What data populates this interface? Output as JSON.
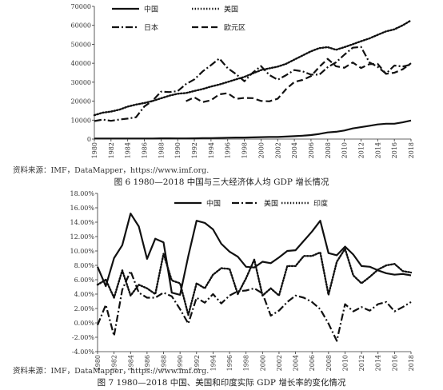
{
  "figure1": {
    "source": "资料来源：IMF，DataMapper，https://www.imf.org.",
    "caption": "图 6   1980—2018 中国与三大经济体人均 GDP 增长情况",
    "chart_data": {
      "type": "line",
      "title": "",
      "xlabel": "",
      "ylabel": "",
      "ylim": [
        0,
        70000
      ],
      "yticks": [
        0,
        10000,
        20000,
        30000,
        40000,
        50000,
        60000,
        70000
      ],
      "ytick_labels": [
        "0",
        "10000",
        "20000",
        "30000",
        "40000",
        "50000",
        "60000",
        "70000"
      ],
      "xticks": [
        "1980",
        "1982",
        "1984",
        "1986",
        "1988",
        "1990",
        "1992",
        "1994",
        "1996",
        "1998",
        "2000",
        "2002",
        "2004",
        "2006",
        "2008",
        "2010",
        "2012",
        "2014",
        "2016",
        "2018"
      ],
      "x": [
        1980,
        1981,
        1982,
        1983,
        1984,
        1985,
        1986,
        1987,
        1988,
        1989,
        1990,
        1991,
        1992,
        1993,
        1994,
        1995,
        1996,
        1997,
        1998,
        1999,
        2000,
        2001,
        2002,
        2003,
        2004,
        2005,
        2006,
        2007,
        2008,
        2009,
        2010,
        2011,
        2012,
        2013,
        2014,
        2015,
        2016,
        2017,
        2018
      ],
      "legend_position": "top",
      "grid": false,
      "series": [
        {
          "name": "中国",
          "style": "solid",
          "values": [
            300,
            300,
            300,
            300,
            300,
            300,
            300,
            300,
            400,
            400,
            350,
            350,
            400,
            500,
            500,
            600,
            700,
            800,
            800,
            900,
            1000,
            1100,
            1100,
            1300,
            1500,
            1750,
            2100,
            2700,
            3500,
            3850,
            4500,
            5600,
            6300,
            7000,
            7700,
            8100,
            8100,
            8800,
            9800
          ]
        },
        {
          "name": "美国",
          "style": "dotted",
          "values": [
            12600,
            13900,
            14500,
            15500,
            17100,
            18200,
            19000,
            20100,
            21500,
            22900,
            23900,
            24300,
            25400,
            26400,
            27700,
            28800,
            30100,
            31500,
            32800,
            34600,
            36400,
            37300,
            38200,
            39700,
            41900,
            44100,
            46300,
            48000,
            48500,
            47100,
            48500,
            50000,
            51600,
            53100,
            55000,
            56800,
            57900,
            60000,
            62600
          ]
        },
        {
          "name": "日本",
          "style": "dashdot",
          "values": [
            9500,
            10300,
            9600,
            10300,
            10800,
            11500,
            17200,
            20300,
            25000,
            24800,
            25300,
            29000,
            31500,
            35700,
            39000,
            42500,
            37400,
            34300,
            30500,
            35000,
            38500,
            33800,
            31300,
            33700,
            36400,
            35700,
            34000,
            34000,
            37900,
            40500,
            44500,
            48200,
            48600,
            40500,
            38100,
            34500,
            38800,
            38300,
            39300
          ]
        },
        {
          "name": "欧元区",
          "style": "dashed",
          "values": [
            null,
            null,
            null,
            null,
            null,
            null,
            null,
            null,
            null,
            null,
            null,
            20000,
            22000,
            19500,
            20500,
            23600,
            24200,
            21200,
            21700,
            21600,
            20100,
            19900,
            21300,
            26300,
            30100,
            31200,
            33200,
            38100,
            42300,
            38400,
            37600,
            40400,
            37500,
            39500,
            39700,
            34400,
            35000,
            36800,
            40000
          ]
        }
      ]
    }
  },
  "figure2": {
    "source": "资料来源：IMF，DataMapper，https://www.imf.org.",
    "caption": "图 7   1980—2018 中国、美国和印度实际 GDP 增长率的变化情况",
    "chart_data": {
      "type": "line",
      "title": "",
      "xlabel": "",
      "ylabel": "",
      "ylim": [
        -4,
        18
      ],
      "yticks": [
        -4,
        -2,
        0,
        2,
        4,
        6,
        8,
        10,
        12,
        14,
        16,
        18
      ],
      "ytick_labels": [
        "-4.00%",
        "-2.00%",
        "0.00%",
        "2.00%",
        "4.00%",
        "6.00%",
        "8.00%",
        "10.00%",
        "12.00%",
        "14.00%",
        "16.00%",
        "18.00%"
      ],
      "xticks": [
        "1980",
        "1982",
        "1984",
        "1986",
        "1988",
        "1990",
        "1992",
        "1994",
        "1996",
        "1998",
        "2000",
        "2002",
        "2004",
        "2006",
        "2008",
        "2010",
        "2012",
        "2014",
        "2016",
        "2018"
      ],
      "x": [
        1980,
        1981,
        1982,
        1983,
        1984,
        1985,
        1986,
        1987,
        1988,
        1989,
        1990,
        1991,
        1992,
        1993,
        1994,
        1995,
        1996,
        1997,
        1998,
        1999,
        2000,
        2001,
        2002,
        2003,
        2004,
        2005,
        2006,
        2007,
        2008,
        2009,
        2010,
        2011,
        2012,
        2013,
        2014,
        2015,
        2016,
        2017,
        2018
      ],
      "legend_position": "top",
      "grid": false,
      "series": [
        {
          "name": "中国",
          "style": "solid",
          "values": [
            7.8,
            5.1,
            9.0,
            10.8,
            15.2,
            13.4,
            8.9,
            11.7,
            11.2,
            4.2,
            3.9,
            9.3,
            14.2,
            13.9,
            13.0,
            11.0,
            9.9,
            9.2,
            7.8,
            7.7,
            8.5,
            8.3,
            9.1,
            10.0,
            10.1,
            11.4,
            12.7,
            14.2,
            9.7,
            9.4,
            10.6,
            9.5,
            7.9,
            7.8,
            7.3,
            6.9,
            6.7,
            6.8,
            6.6
          ]
        },
        {
          "name": "美国",
          "style": "dashdot",
          "values": [
            -0.3,
            2.5,
            -1.8,
            4.6,
            7.2,
            4.2,
            3.5,
            3.5,
            4.2,
            3.7,
            1.9,
            -0.1,
            3.5,
            2.8,
            4.0,
            2.7,
            3.8,
            4.4,
            4.5,
            4.8,
            4.1,
            1.0,
            1.7,
            2.9,
            3.8,
            3.5,
            2.9,
            1.9,
            -0.1,
            -2.5,
            2.6,
            1.6,
            2.2,
            1.7,
            2.6,
            2.9,
            1.6,
            2.2,
            2.9
          ]
        },
        {
          "name": "印度",
          "style": "dotted",
          "values": [
            5.3,
            6.0,
            3.5,
            7.3,
            3.8,
            5.3,
            4.8,
            4.0,
            9.6,
            5.9,
            5.5,
            1.1,
            5.5,
            4.8,
            6.7,
            7.6,
            7.5,
            4.0,
            6.2,
            8.8,
            3.8,
            4.8,
            3.8,
            7.9,
            7.9,
            9.3,
            9.3,
            9.8,
            3.9,
            8.5,
            10.3,
            6.6,
            5.5,
            6.4,
            7.4,
            8.0,
            8.2,
            7.2,
            7.0
          ]
        }
      ]
    }
  }
}
